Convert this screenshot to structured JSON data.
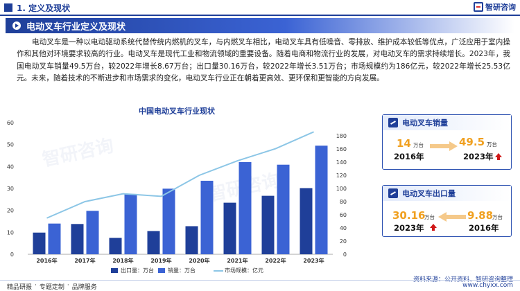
{
  "header": {
    "section": "1. 定义及现状",
    "brand": "智研咨询"
  },
  "title": "电动叉车行业定义及现状",
  "paragraph": "电动叉车是一种以电动驱动系统代替传统内燃机的叉车，与内燃叉车相比，电动叉车具有低噪音、零排放、维护成本较低等优点，广泛应用于室内操作和其他对环境要求较高的行业。电动叉车是现代工业和物流领域的重要设备。随着电商和物流行业的发展，对电动叉车的需求持续增长。2023年，我国电动叉车销量49.5万台，较2022年增长8.67万台；出口量30.16万台，较2022年增长3.51万台；市场规模约为186亿元，较2022年增长25.53亿元。未来，随着技术的不断进步和市场需求的变化，电动叉车行业正在朝着更高效、更环保和更智能的方向发展。",
  "chart_data": {
    "type": "bar",
    "title": "中国电动叉车行业现状",
    "categories": [
      "2016年",
      "2017年",
      "2018年",
      "2019年",
      "2020年",
      "2021年",
      "2022年",
      "2023年"
    ],
    "series": [
      {
        "name": "出口量：万台",
        "kind": "bar",
        "axis": "left",
        "color": "#1f3f99",
        "values": [
          9.88,
          13.8,
          7.5,
          10.6,
          12.8,
          23.5,
          26.65,
          30.16
        ]
      },
      {
        "name": "销量：万台",
        "kind": "bar",
        "axis": "left",
        "color": "#3b63d4",
        "values": [
          14,
          19.8,
          27.5,
          29.9,
          33.5,
          42,
          40.83,
          49.5
        ]
      },
      {
        "name": "市场规模：亿元",
        "kind": "line",
        "axis": "right",
        "color": "#8cc6e6",
        "values": [
          55,
          80,
          92,
          88,
          120,
          142,
          160.47,
          186
        ]
      }
    ],
    "ylim_left": [
      0,
      60
    ],
    "yticks_left": [
      "0",
      "10",
      "20",
      "30",
      "40",
      "50",
      "60"
    ],
    "ylim_right": [
      0,
      200
    ],
    "yticks_right": [
      "0",
      "20",
      "40",
      "60",
      "80",
      "100",
      "120",
      "140",
      "160",
      "180"
    ],
    "legend_position": "bottom"
  },
  "card_sales": {
    "title": "电动叉车销量",
    "from_value": "14",
    "from_unit": "万台",
    "from_year": "2016年",
    "to_value": "49.5",
    "to_unit": "万台",
    "to_year": "2023年"
  },
  "card_export": {
    "title": "电动叉车出口量",
    "recent_value": "30.16",
    "recent_unit": "万台",
    "recent_year": "2023年",
    "old_value": "9.88",
    "old_unit": "万台",
    "old_year": "2016年"
  },
  "source": "资料来源：公开资料、智研咨询整理",
  "footer": {
    "left_items": [
      "精品研报",
      "专题定制",
      "品牌服务"
    ],
    "sep": "·",
    "right": "www.chyxx.com"
  },
  "colors": {
    "primary": "#1f3f99",
    "accent": "#f0a020",
    "up": "#d01818"
  }
}
